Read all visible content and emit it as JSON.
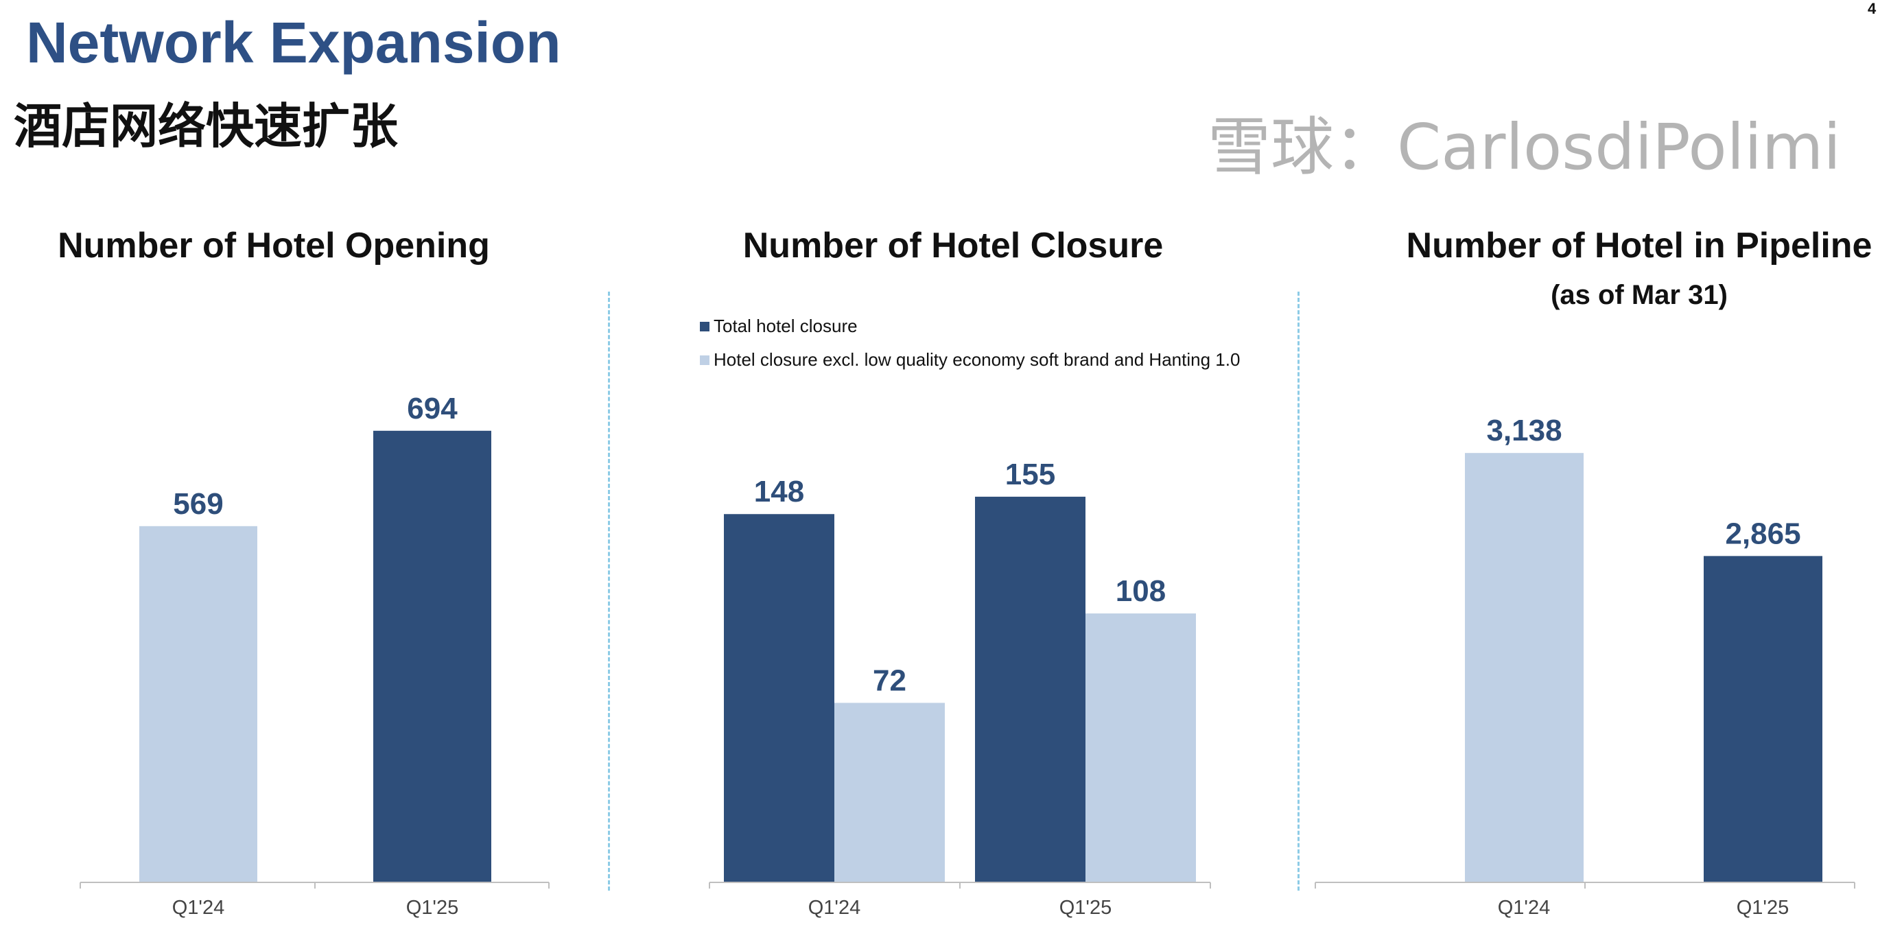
{
  "page": {
    "title": "Network Expansion",
    "subtitle": "酒店网络快速扩张",
    "page_number": "4",
    "watermark": "雪球：CarlosdiPolimi"
  },
  "colors": {
    "dark": "#2E4E7A",
    "light": "#BFD0E5",
    "title": "#2E5085",
    "divider": "#8DCBE6"
  },
  "chart_data": [
    {
      "type": "bar",
      "title": "Number of Hotel Opening",
      "categories": [
        "Q1'24",
        "Q1'25"
      ],
      "values": [
        569,
        694
      ],
      "bar_colors": [
        "light",
        "dark"
      ],
      "grid": false
    },
    {
      "type": "bar",
      "title": "Number of Hotel Closure",
      "categories": [
        "Q1'24",
        "Q1'25"
      ],
      "series": [
        {
          "name": "Total hotel closure",
          "values": [
            148,
            155
          ],
          "color": "dark"
        },
        {
          "name": "Hotel closure excl. low quality economy soft brand and Hanting 1.0",
          "values": [
            72,
            108
          ],
          "color": "light"
        }
      ],
      "legend": "top-left",
      "grid": false
    },
    {
      "type": "bar",
      "title": "Number of Hotel in Pipeline",
      "subtitle": "(as of Mar 31)",
      "categories": [
        "Q1'24",
        "Q1'25"
      ],
      "values": [
        3138,
        2865
      ],
      "value_labels": [
        "3,138",
        "2,865"
      ],
      "bar_colors": [
        "light",
        "dark"
      ],
      "grid": false
    }
  ]
}
